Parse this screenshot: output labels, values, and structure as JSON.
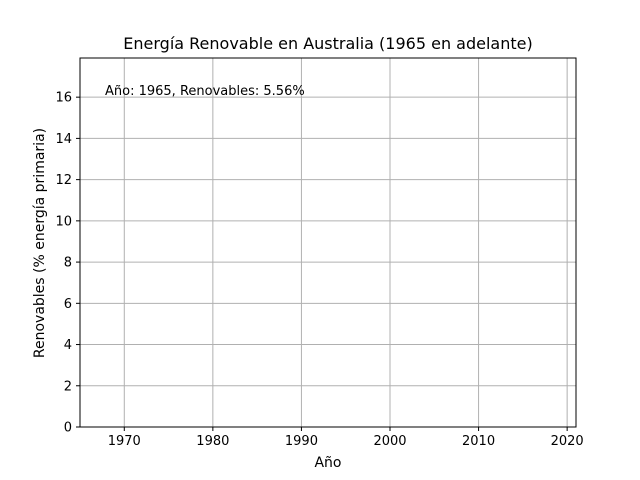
{
  "chart_data": {
    "type": "line",
    "title": "Energía Renovable en Australia (1965 en adelante)",
    "xlabel": "Año",
    "ylabel": "Renovables (% energía primaria)",
    "xlim": [
      1965,
      2021
    ],
    "ylim": [
      0,
      17.9
    ],
    "x_ticks": [
      1970,
      1980,
      1990,
      2000,
      2010,
      2020
    ],
    "y_ticks": [
      0,
      2,
      4,
      6,
      8,
      10,
      12,
      14,
      16
    ],
    "grid": true,
    "annotation": {
      "text": "Año: 1965, Renovables: 5.56%"
    },
    "series": [
      {
        "x": [],
        "y": []
      }
    ]
  }
}
